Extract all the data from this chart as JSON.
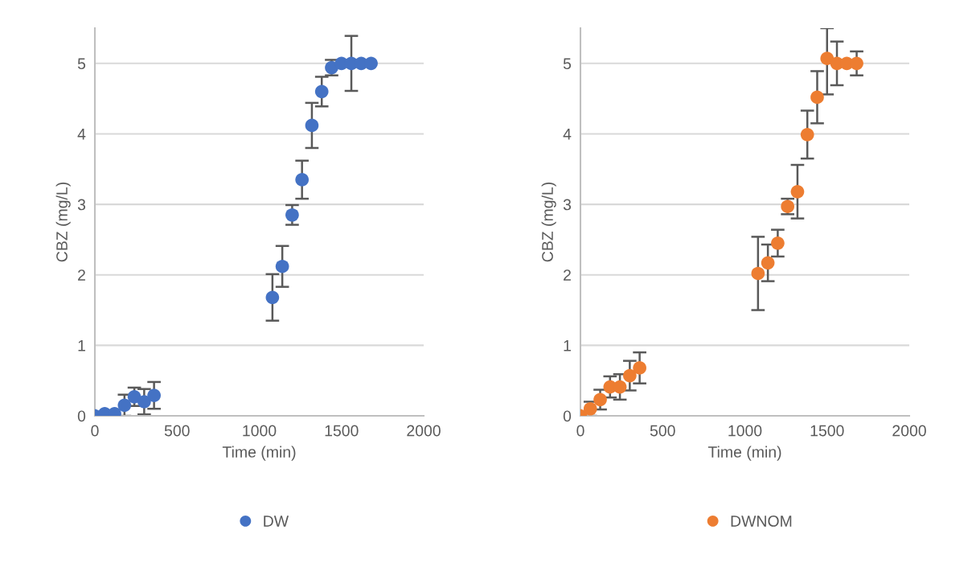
{
  "chart_data": [
    {
      "type": "scatter",
      "xlabel": "Time (min)",
      "ylabel": "CBZ (mg/L)",
      "xlim": [
        0,
        2000
      ],
      "xticks": [
        0,
        500,
        1000,
        1500,
        2000
      ],
      "ylim": [
        0,
        5.5
      ],
      "yticks": [
        0,
        1,
        2,
        3,
        4,
        5
      ],
      "grid": "y",
      "legend": "bottom",
      "marker": "circle",
      "series": [
        {
          "name": "DW",
          "color": "#4472c4",
          "x": [
            0,
            60,
            120,
            180,
            240,
            300,
            360,
            1080,
            1140,
            1200,
            1260,
            1320,
            1380,
            1440,
            1500,
            1560,
            1620,
            1680
          ],
          "values": [
            0,
            0.03,
            0.03,
            0.15,
            0.27,
            0.2,
            0.29,
            1.68,
            2.12,
            2.85,
            3.35,
            4.12,
            4.6,
            4.94,
            5.0,
            5.0,
            5.0,
            5.0
          ],
          "errors": [
            null,
            null,
            null,
            0.15,
            0.13,
            0.18,
            0.19,
            0.33,
            0.29,
            0.14,
            0.27,
            0.32,
            0.21,
            0.11,
            null,
            0.39,
            null,
            null
          ]
        }
      ]
    },
    {
      "type": "scatter",
      "xlabel": "Time (min)",
      "ylabel": "CBZ (mg/L)",
      "xlim": [
        0,
        2000
      ],
      "xticks": [
        0,
        500,
        1000,
        1500,
        2000
      ],
      "ylim": [
        0,
        5.5
      ],
      "yticks": [
        0,
        1,
        2,
        3,
        4,
        5
      ],
      "grid": "y",
      "legend": "bottom",
      "marker": "circle",
      "series": [
        {
          "name": "DWNOM",
          "color": "#ed7d31",
          "x": [
            0,
            60,
            120,
            180,
            240,
            300,
            360,
            1080,
            1140,
            1200,
            1260,
            1320,
            1380,
            1440,
            1500,
            1560,
            1620,
            1680
          ],
          "values": [
            0,
            0.1,
            0.23,
            0.41,
            0.41,
            0.57,
            0.68,
            2.02,
            2.17,
            2.45,
            2.97,
            3.18,
            3.99,
            4.52,
            5.07,
            5.0,
            5.0,
            5.0
          ],
          "errors": [
            null,
            0.1,
            0.14,
            0.15,
            0.18,
            0.21,
            0.22,
            0.52,
            0.26,
            0.19,
            0.11,
            0.38,
            0.34,
            0.37,
            [
              4.56,
              5.5
            ],
            0.31,
            null,
            0.17
          ]
        }
      ]
    }
  ]
}
